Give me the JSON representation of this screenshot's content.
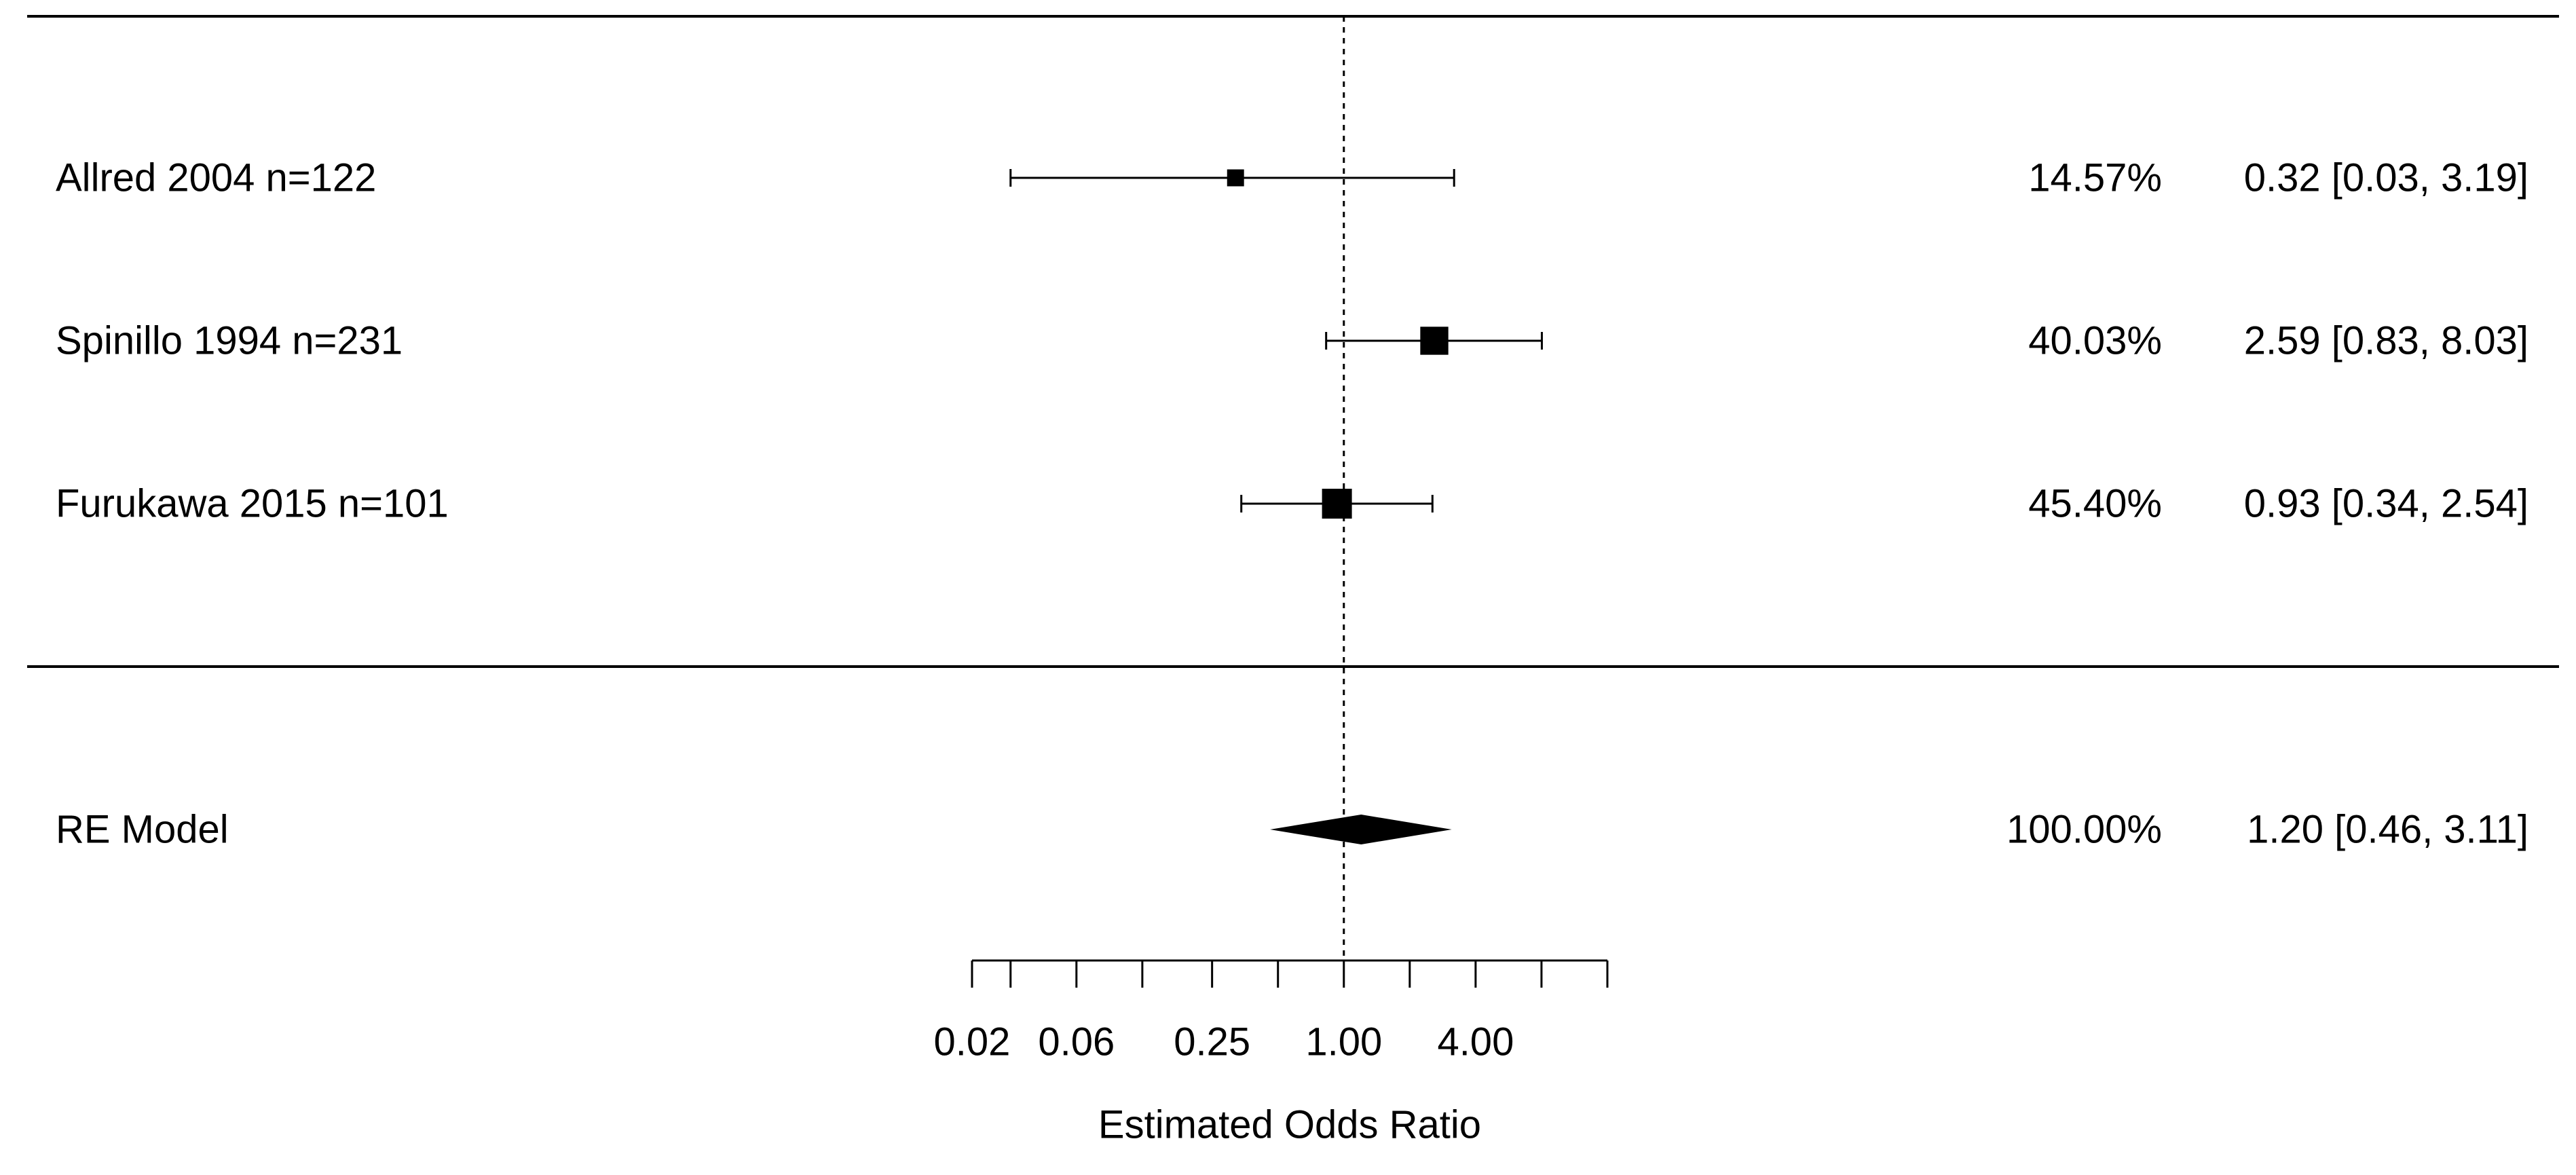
{
  "chart_data": {
    "type": "forest",
    "title": "",
    "xlabel": "Estimated Odds Ratio",
    "x_scale": "log",
    "reference_line": 1.0,
    "x_ticks": [
      0.02,
      0.03,
      0.06,
      0.12,
      0.25,
      0.5,
      1.0,
      2.0,
      4.0,
      8.0,
      16.0
    ],
    "x_tick_labels": [
      "0.02",
      "",
      "0.06",
      "",
      "0.25",
      "",
      "1.00",
      "",
      "4.00",
      "",
      ""
    ],
    "studies": [
      {
        "label": "Allred 2004   n=122",
        "weight": "14.57%",
        "estimate": 0.32,
        "ci_low": 0.03,
        "ci_high": 3.19,
        "summary": "0.32 [0.03, 3.19]"
      },
      {
        "label": "Spinillo 1994   n=231",
        "weight": "40.03%",
        "estimate": 2.59,
        "ci_low": 0.83,
        "ci_high": 8.03,
        "summary": "2.59 [0.83, 8.03]"
      },
      {
        "label": "Furukawa 2015   n=101",
        "weight": "45.40%",
        "estimate": 0.93,
        "ci_low": 0.34,
        "ci_high": 2.54,
        "summary": "0.93 [0.34, 2.54]"
      }
    ],
    "pooled": {
      "label": "RE Model",
      "weight": "100.00%",
      "estimate": 1.2,
      "ci_low": 0.46,
      "ci_high": 3.11,
      "summary": "1.20 [0.46, 3.11]"
    }
  }
}
